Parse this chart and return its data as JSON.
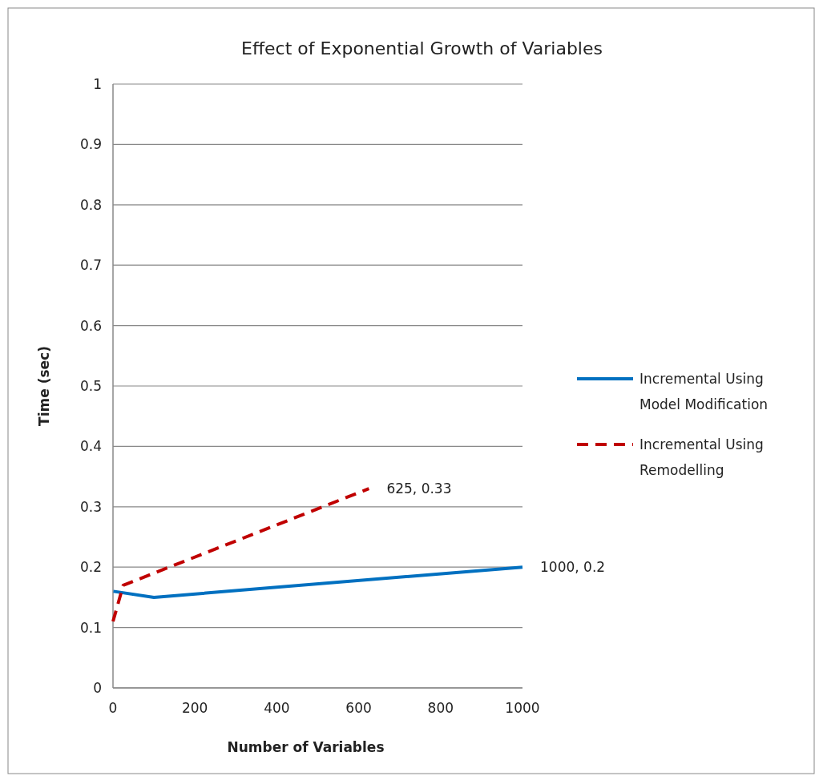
{
  "chart_data": {
    "type": "line",
    "title": "Effect of Exponential Growth  of Variables",
    "xlabel": "Number of Variables",
    "ylabel": "Time (sec)",
    "xlim": [
      0,
      1000
    ],
    "xticks": [
      0,
      200,
      400,
      600,
      800,
      1000
    ],
    "ylim": [
      0,
      1
    ],
    "yticks": [
      0,
      0.1,
      0.2,
      0.3,
      0.4,
      0.5,
      0.6,
      0.7,
      0.8,
      0.9,
      1
    ],
    "grid": "y",
    "legend": "right",
    "series": [
      {
        "name": "Incremental Using Model Modification",
        "color": "#0070c0",
        "line_style": "solid",
        "x": [
          1,
          100,
          1000
        ],
        "values": [
          0.16,
          0.15,
          0.2
        ]
      },
      {
        "name": "Incremental Using Remodelling",
        "color": "#c00000",
        "line_style": "dashed",
        "x": [
          0,
          25,
          625
        ],
        "values": [
          0.11,
          0.17,
          0.33
        ]
      }
    ],
    "annotations": [
      {
        "text": "625, 0.33",
        "x": 625,
        "y": 0.33
      },
      {
        "text": "1000, 0.2",
        "x": 1000,
        "y": 0.2
      }
    ]
  }
}
